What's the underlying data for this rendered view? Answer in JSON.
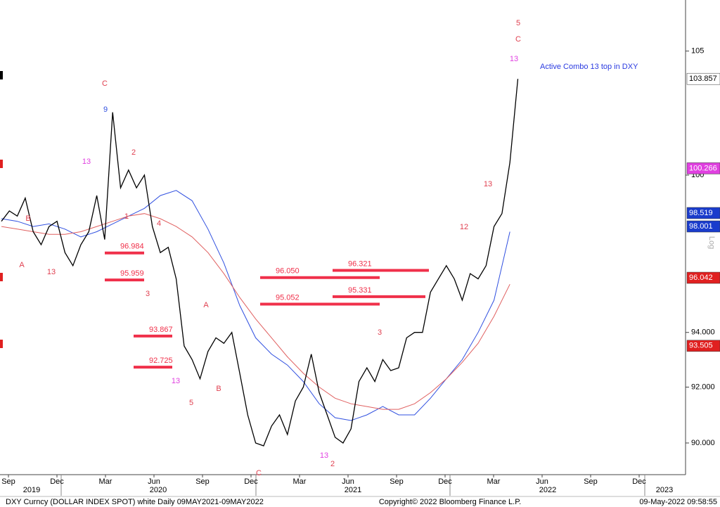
{
  "chart_data": {
    "type": "line",
    "log_scale": true,
    "ylim": [
      88.886,
      107.13
    ],
    "yticks": [
      {
        "value": 90,
        "label": "90.000"
      },
      {
        "value": 92,
        "label": "92.000"
      },
      {
        "value": 94,
        "label": "94.000"
      },
      100,
      105
    ],
    "x_labels": [
      "Sep",
      "Dec",
      "Mar",
      "Jun",
      "Sep",
      "Dec",
      "Mar",
      "Jun",
      "Sep",
      "Dec",
      "Mar",
      "Jun",
      "Sep",
      "Dec"
    ],
    "year_labels": [
      "2019",
      "2020",
      "2021",
      "2022",
      "2023"
    ],
    "price": {
      "color": "#000000",
      "values": [
        98.2,
        98.6,
        98.4,
        99.1,
        97.8,
        97.3,
        98.0,
        98.2,
        97.0,
        96.5,
        97.3,
        97.8,
        99.2,
        97.5,
        102.5,
        99.5,
        100.2,
        99.5,
        100.0,
        98.0,
        97.0,
        97.2,
        96.0,
        93.5,
        93.0,
        92.3,
        93.3,
        93.8,
        93.6,
        94.0,
        92.5,
        91.0,
        90.0,
        89.9,
        90.6,
        91.0,
        90.3,
        91.5,
        92.0,
        93.2,
        91.8,
        91.0,
        90.2,
        90.0,
        90.5,
        92.2,
        92.7,
        92.2,
        93.0,
        92.6,
        92.7,
        93.8,
        94.0,
        94.0,
        95.5,
        96.0,
        96.5,
        96.0,
        95.2,
        96.2,
        96.0,
        96.5,
        98.0,
        98.5,
        100.5,
        103.857
      ]
    },
    "moving_averages": [
      {
        "color": "#3050e0",
        "values": [
          98.3,
          98.2,
          98.0,
          98.1,
          97.9,
          97.6,
          97.8,
          98.1,
          98.4,
          98.7,
          99.2,
          99.4,
          99.0,
          97.9,
          96.6,
          95.0,
          93.8,
          93.2,
          92.8,
          92.2,
          91.4,
          90.9,
          90.8,
          91.0,
          91.3,
          91.0,
          91.0,
          91.6,
          92.3,
          93.0,
          94.0,
          95.2,
          97.8
        ]
      },
      {
        "color": "#e06060",
        "values": [
          98.0,
          97.9,
          97.8,
          97.7,
          97.7,
          97.8,
          98.0,
          98.2,
          98.4,
          98.5,
          98.3,
          98.0,
          97.6,
          97.0,
          96.2,
          95.3,
          94.5,
          93.8,
          93.1,
          92.5,
          92.0,
          91.6,
          91.4,
          91.3,
          91.2,
          91.2,
          91.4,
          91.8,
          92.3,
          92.9,
          93.6,
          94.6,
          95.8
        ]
      }
    ],
    "levels": [
      {
        "value": 96.984,
        "label": "96.984"
      },
      {
        "value": 95.959,
        "label": "95.959"
      },
      {
        "value": 96.05,
        "label": "96.050"
      },
      {
        "value": 95.052,
        "label": "95.052"
      },
      {
        "value": 96.321,
        "label": "96.321"
      },
      {
        "value": 95.331,
        "label": "95.331"
      },
      {
        "value": 93.867,
        "label": "93.867"
      },
      {
        "value": 92.725,
        "label": "92.725"
      }
    ],
    "level_color": "#f0304a",
    "price_boxes": [
      {
        "value": 103.857,
        "label": "103.857",
        "color": "#ffffff",
        "text_color": "#000000"
      },
      {
        "value": 100.266,
        "label": "100.266",
        "color": "#e040e0",
        "text_color": "#ffffff"
      },
      {
        "value": 98.519,
        "label": "98.519",
        "color": "#1a3ccc",
        "text_color": "#ffffff"
      },
      {
        "value": 98.001,
        "label": "98.001",
        "color": "#1a3ccc",
        "text_color": "#ffffff"
      },
      {
        "value": 96.042,
        "label": "96.042",
        "color": "#e02020",
        "text_color": "#ffffff"
      },
      {
        "value": 93.505,
        "label": "93.505",
        "color": "#e02020",
        "text_color": "#ffffff"
      }
    ],
    "annotations": [
      {
        "text": "5",
        "color": "#e04050"
      },
      {
        "text": "C",
        "color": "#e04050"
      },
      {
        "text": "13",
        "color": "#e040e0"
      },
      {
        "text": "C",
        "color": "#e04050"
      },
      {
        "text": "9",
        "color": "#3050e0"
      },
      {
        "text": "13",
        "color": "#e040e0"
      },
      {
        "text": "2",
        "color": "#e04050"
      },
      {
        "text": "1",
        "color": "#e04050"
      },
      {
        "text": "4",
        "color": "#e04050"
      },
      {
        "text": "3",
        "color": "#e04050"
      },
      {
        "text": "A",
        "color": "#e04050"
      },
      {
        "text": "5",
        "color": "#e04050"
      },
      {
        "text": "B",
        "color": "#e04050"
      },
      {
        "text": "C",
        "color": "#e04050"
      },
      {
        "text": "13",
        "color": "#e040e0"
      },
      {
        "text": "2",
        "color": "#e04050"
      },
      {
        "text": "3",
        "color": "#e04050"
      },
      {
        "text": "12",
        "color": "#e04050"
      },
      {
        "text": "13",
        "color": "#e04050"
      },
      {
        "text": "A",
        "color": "#e04050"
      },
      {
        "text": "B",
        "color": "#e04050"
      },
      {
        "text": "13",
        "color": "#e04050"
      },
      {
        "text": "13",
        "color": "#e040e0"
      }
    ],
    "note": "Active Combo 13 top in DXY",
    "note_color": "#2a3ae0",
    "log_label": "Log",
    "footer": {
      "left": "DXY Curncy (DOLLAR INDEX SPOT) white  Daily 09MAY2021-09MAY2022",
      "center": "Copyright© 2022 Bloomberg Finance L.P.",
      "right": "09-May-2022 09:58:55"
    }
  }
}
